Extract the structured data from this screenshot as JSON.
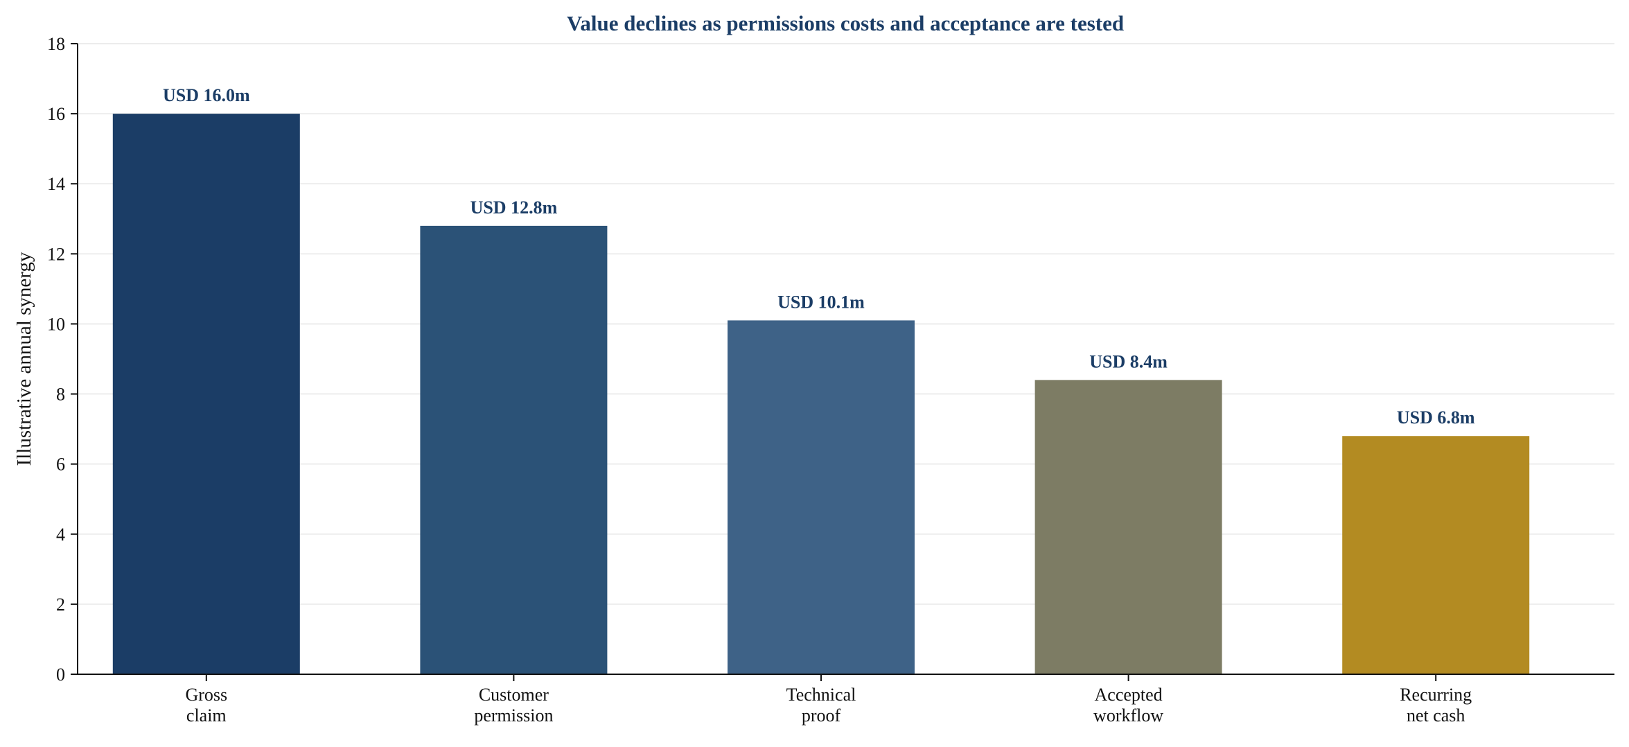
{
  "chart_data": {
    "type": "bar",
    "title": "Value declines as permissions costs and acceptance are tested",
    "xlabel": "",
    "ylabel": "Illustrative annual synergy",
    "ylim": [
      0,
      18
    ],
    "yticks": [
      "0",
      "2",
      "4",
      "6",
      "8",
      "10",
      "12",
      "14",
      "16",
      "18"
    ],
    "grid": "horizontal",
    "categories": [
      [
        "Gross",
        "claim"
      ],
      [
        "Customer",
        "permission"
      ],
      [
        "Technical",
        "proof"
      ],
      [
        "Accepted",
        "workflow"
      ],
      [
        "Recurring",
        "net cash"
      ]
    ],
    "values": [
      16.0,
      12.8,
      10.1,
      8.4,
      6.8
    ],
    "value_labels": [
      "USD 16.0m",
      "USD 12.8m",
      "USD 10.1m",
      "USD 8.4m",
      "USD 6.8m"
    ],
    "bar_colors": [
      "#1b3d66",
      "#2b5277",
      "#3e6287",
      "#7d7c64",
      "#b38b22"
    ],
    "title_color": "#1b3d66",
    "label_color": "#1b3d66"
  }
}
